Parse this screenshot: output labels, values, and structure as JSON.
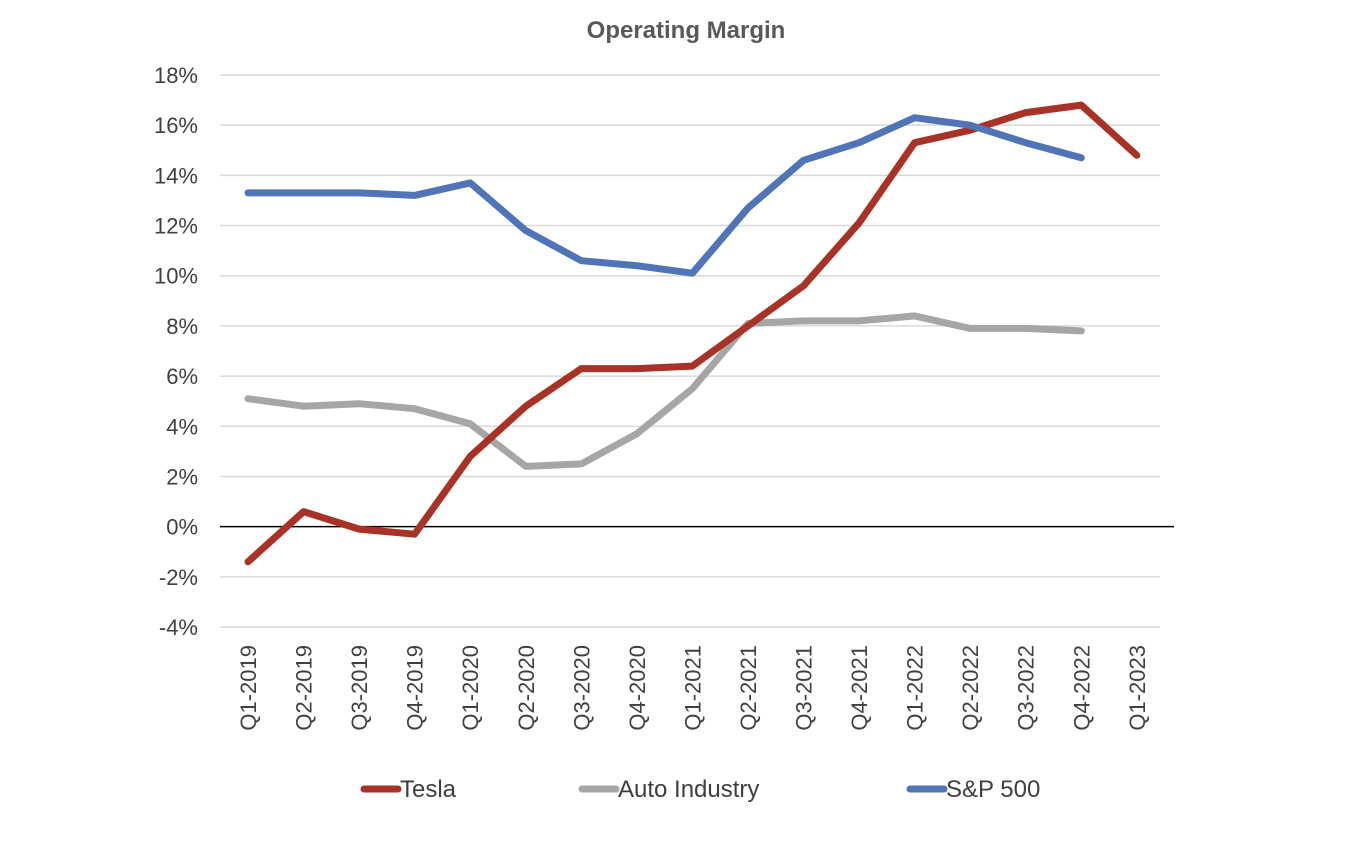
{
  "chart_data": {
    "type": "line",
    "title": "Operating Margin",
    "xlabel": "",
    "ylabel": "",
    "categories": [
      "Q1-2019",
      "Q2-2019",
      "Q3-2019",
      "Q4-2019",
      "Q1-2020",
      "Q2-2020",
      "Q3-2020",
      "Q4-2020",
      "Q1-2021",
      "Q2-2021",
      "Q3-2021",
      "Q4-2021",
      "Q1-2022",
      "Q2-2022",
      "Q3-2022",
      "Q4-2022",
      "Q1-2023"
    ],
    "ylim": [
      -4,
      18
    ],
    "yticks": [
      -4,
      -2,
      0,
      2,
      4,
      6,
      8,
      10,
      12,
      14,
      16,
      18
    ],
    "ytick_labels": [
      "-4%",
      "-2%",
      "0%",
      "2%",
      "4%",
      "6%",
      "8%",
      "10%",
      "12%",
      "14%",
      "16%",
      "18%"
    ],
    "grid": true,
    "legend_position": "bottom",
    "series": [
      {
        "name": "Tesla",
        "color": "#a93226",
        "values": [
          -1.4,
          0.6,
          -0.1,
          -0.3,
          2.8,
          4.8,
          6.3,
          6.3,
          6.4,
          8.0,
          9.6,
          12.1,
          15.3,
          15.8,
          16.5,
          16.8,
          14.8
        ]
      },
      {
        "name": "Auto Industry",
        "color": "#a6a6a6",
        "values": [
          5.1,
          4.8,
          4.9,
          4.7,
          4.1,
          2.4,
          2.5,
          3.7,
          5.5,
          8.1,
          8.2,
          8.2,
          8.4,
          7.9,
          7.9,
          7.8,
          null
        ]
      },
      {
        "name": "S&P 500",
        "color": "#4f74b8",
        "values": [
          13.3,
          13.3,
          13.3,
          13.2,
          13.7,
          11.8,
          10.6,
          10.4,
          10.1,
          12.7,
          14.6,
          15.3,
          16.3,
          16.0,
          15.3,
          14.7,
          null
        ]
      }
    ]
  }
}
